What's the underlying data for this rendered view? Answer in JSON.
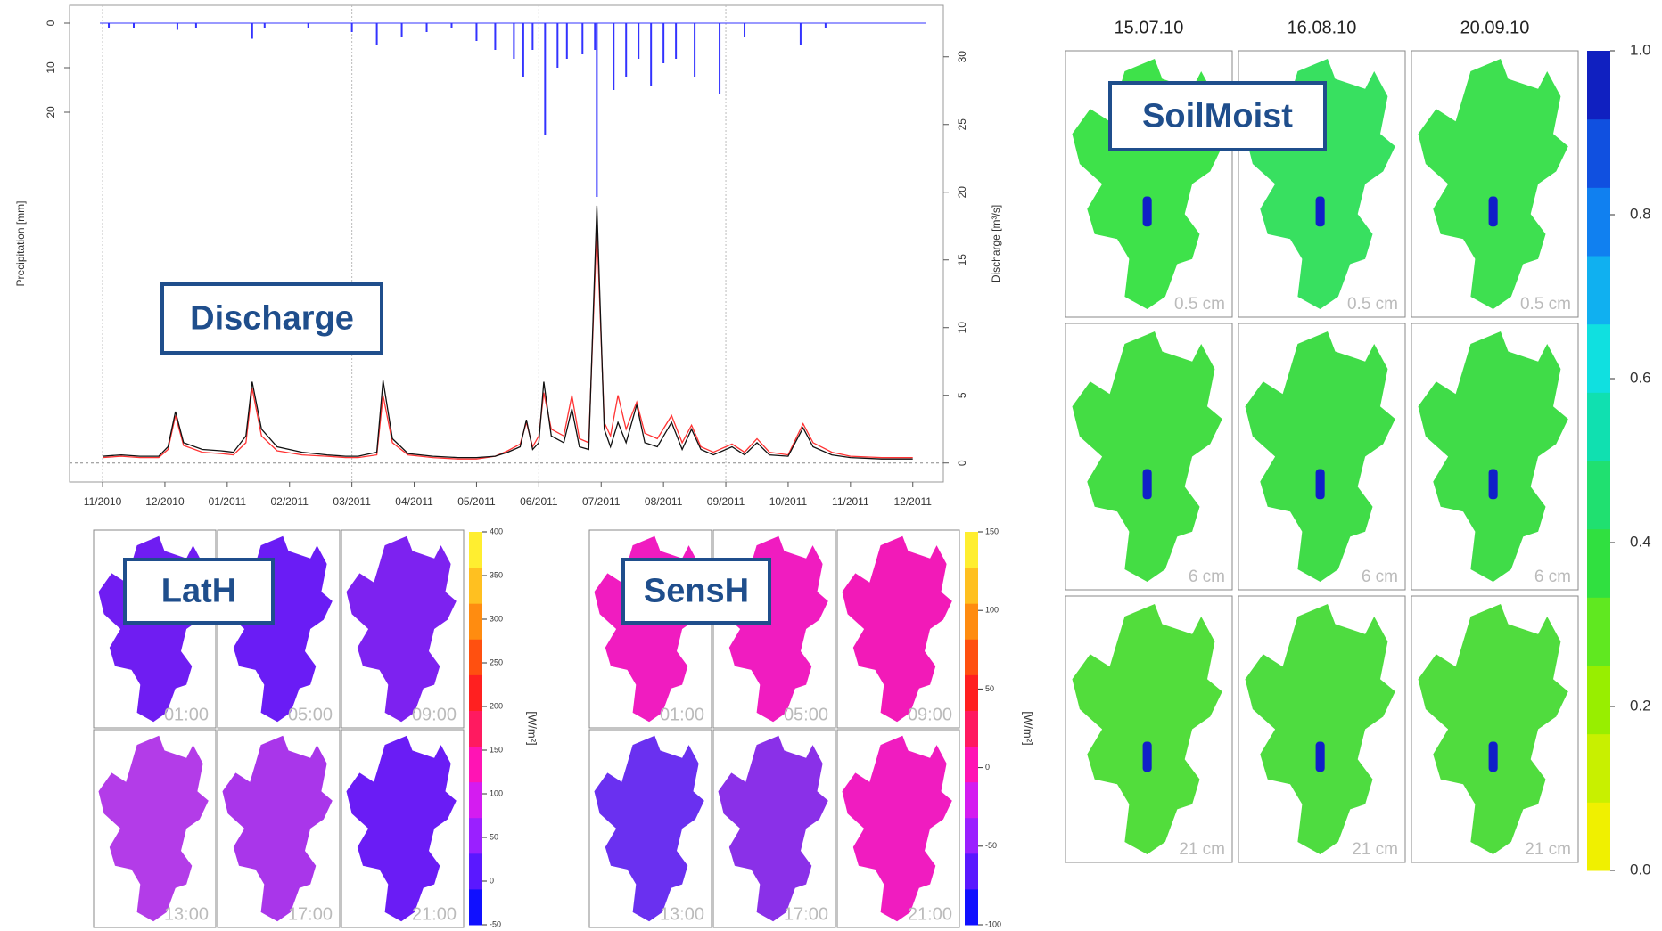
{
  "chart_data": [
    {
      "type": "line",
      "annotation": "Discharge",
      "ylabel": "Precipitation [mm]",
      "y2label": "Discharge [m³/s]",
      "xlim": [
        -0.53,
        13.49
      ],
      "xticks": [
        {
          "value": 0,
          "label": "11/2010"
        },
        {
          "value": 1,
          "label": "12/2010"
        },
        {
          "value": 2,
          "label": "01/2011"
        },
        {
          "value": 3,
          "label": "02/2011"
        },
        {
          "value": 4,
          "label": "03/2011"
        },
        {
          "value": 5,
          "label": "04/2011"
        },
        {
          "value": 6,
          "label": "05/2011"
        },
        {
          "value": 7,
          "label": "06/2011"
        },
        {
          "value": 8,
          "label": "07/2011"
        },
        {
          "value": 9,
          "label": "08/2011"
        },
        {
          "value": 10,
          "label": "09/2011"
        },
        {
          "value": 11,
          "label": "10/2011"
        },
        {
          "value": 12,
          "label": "11/2011"
        },
        {
          "value": 13,
          "label": "12/2011"
        }
      ],
      "xgrid_ticks": [
        0,
        4,
        7,
        10
      ],
      "ylim": [
        -4,
        103
      ],
      "y_inverted": true,
      "yticks": [
        0,
        10,
        20
      ],
      "y2lim": [
        -1.4,
        33.8
      ],
      "y2ticks": [
        0,
        5,
        10,
        15,
        20,
        25,
        30
      ],
      "x": [
        0,
        0.3,
        0.6,
        0.9,
        1.05,
        1.17,
        1.3,
        1.6,
        1.9,
        2.1,
        2.3,
        2.4,
        2.55,
        2.8,
        3.2,
        3.6,
        3.9,
        4.1,
        4.4,
        4.5,
        4.65,
        4.9,
        5.3,
        5.7,
        6.0,
        6.3,
        6.5,
        6.7,
        6.8,
        6.9,
        7.0,
        7.08,
        7.2,
        7.4,
        7.53,
        7.65,
        7.8,
        7.93,
        8.05,
        8.15,
        8.27,
        8.4,
        8.57,
        8.7,
        8.9,
        9.13,
        9.3,
        9.45,
        9.6,
        9.8,
        10.1,
        10.3,
        10.5,
        10.7,
        11.0,
        11.24,
        11.4,
        11.7,
        12.0,
        12.5,
        13.0
      ],
      "series": [
        {
          "kind": "bar",
          "axis": "y",
          "color": "#3333ff",
          "x": [
            0.1,
            0.5,
            1.2,
            1.5,
            2.4,
            2.6,
            3.3,
            4.0,
            4.4,
            4.8,
            5.2,
            5.6,
            6.0,
            6.3,
            6.6,
            6.75,
            6.9,
            7.1,
            7.3,
            7.45,
            7.7,
            7.9,
            7.93,
            8.2,
            8.4,
            8.6,
            8.8,
            9.0,
            9.2,
            9.5,
            9.9,
            10.3,
            11.2,
            11.6
          ],
          "values": [
            1,
            1,
            1.5,
            1,
            3.5,
            1,
            1,
            2,
            5,
            3,
            2,
            1,
            4,
            6,
            8,
            12,
            6,
            25,
            10,
            8,
            7,
            6,
            39,
            15,
            12,
            8,
            14,
            9,
            8,
            12,
            16,
            3,
            5,
            1
          ]
        },
        {
          "kind": "line",
          "axis": "y2",
          "color": "#ff3333",
          "values": [
            0.4,
            0.5,
            0.4,
            0.4,
            1.0,
            3.5,
            1.3,
            0.8,
            0.7,
            0.6,
            1.5,
            5.5,
            2.0,
            0.9,
            0.6,
            0.5,
            0.4,
            0.4,
            0.6,
            5.0,
            1.5,
            0.6,
            0.4,
            0.3,
            0.3,
            0.5,
            0.9,
            1.4,
            3.0,
            1.2,
            2.0,
            5.2,
            2.5,
            2.0,
            5.0,
            1.8,
            1.5,
            17.5,
            3.0,
            2.0,
            5.0,
            2.5,
            4.5,
            2.2,
            1.8,
            3.5,
            1.5,
            2.8,
            1.2,
            0.8,
            1.4,
            0.8,
            1.8,
            0.8,
            0.6,
            2.9,
            1.5,
            0.8,
            0.5,
            0.4,
            0.4
          ]
        },
        {
          "kind": "line",
          "axis": "y2",
          "color": "#111111",
          "values": [
            0.5,
            0.6,
            0.5,
            0.5,
            1.2,
            3.8,
            1.5,
            1.0,
            0.9,
            0.8,
            2.0,
            6.0,
            2.5,
            1.2,
            0.8,
            0.6,
            0.5,
            0.5,
            0.8,
            6.1,
            1.8,
            0.7,
            0.5,
            0.4,
            0.4,
            0.5,
            0.8,
            1.2,
            3.2,
            1.0,
            1.5,
            6.0,
            2.0,
            1.5,
            4.0,
            1.2,
            1.0,
            19.0,
            2.5,
            1.2,
            3.0,
            1.5,
            4.3,
            1.5,
            1.2,
            3.0,
            1.0,
            2.5,
            1.0,
            0.6,
            1.2,
            0.6,
            1.5,
            0.6,
            0.5,
            2.6,
            1.2,
            0.6,
            0.4,
            0.3,
            0.3
          ]
        }
      ]
    },
    {
      "type": "map",
      "annotation": "LatH",
      "colorbar_label": "[W/m²]",
      "columns": 3,
      "panels": [
        {
          "label": "01:00",
          "color": "#6f1df2"
        },
        {
          "label": "05:00",
          "color": "#6a1cf5"
        },
        {
          "label": "09:00",
          "color": "#7d22f0"
        },
        {
          "label": "13:00",
          "color": "#b33ce8"
        },
        {
          "label": "17:00",
          "color": "#a936ea"
        },
        {
          "label": "21:00",
          "color": "#6a1cf5"
        }
      ],
      "colorbar": {
        "lim": [
          -50,
          400
        ],
        "ticks": [
          -50,
          0,
          50,
          100,
          150,
          200,
          250,
          300,
          350,
          400
        ],
        "colors": [
          "#1010ff",
          "#5a18ff",
          "#9a20ff",
          "#d41cf0",
          "#ff14b4",
          "#ff1a60",
          "#ff2020",
          "#ff5010",
          "#ff8c10",
          "#ffc020",
          "#ffee30"
        ]
      }
    },
    {
      "type": "map",
      "annotation": "SensH",
      "colorbar_label": "[W/m²]",
      "columns": 3,
      "panels": [
        {
          "label": "01:00",
          "color": "#f01cc0"
        },
        {
          "label": "05:00",
          "color": "#f01cc0"
        },
        {
          "label": "09:00",
          "color": "#f21ab8"
        },
        {
          "label": "13:00",
          "color": "#6a30f0"
        },
        {
          "label": "17:00",
          "color": "#8a30e8"
        },
        {
          "label": "21:00",
          "color": "#f01cc0"
        }
      ],
      "colorbar": {
        "lim": [
          -100,
          150
        ],
        "ticks": [
          -100,
          -50,
          0,
          50,
          100,
          150
        ],
        "colors": [
          "#1010ff",
          "#5a18ff",
          "#9a20ff",
          "#d41cf0",
          "#ff14b4",
          "#ff1a60",
          "#ff2020",
          "#ff5010",
          "#ff8c10",
          "#ffc020",
          "#ffee30"
        ]
      }
    },
    {
      "type": "map",
      "annotation": "SoilMoist",
      "columns": 3,
      "column_titles": [
        "15.07.10",
        "16.08.10",
        "20.09.10"
      ],
      "panels": [
        {
          "label": "0.5 cm",
          "color": "#3ee24a"
        },
        {
          "label": "0.5 cm",
          "color": "#38e060"
        },
        {
          "label": "0.5 cm",
          "color": "#3ee050"
        },
        {
          "label": "6 cm",
          "color": "#44dd44"
        },
        {
          "label": "6 cm",
          "color": "#40dc48"
        },
        {
          "label": "6 cm",
          "color": "#40dc48"
        },
        {
          "label": "21 cm",
          "color": "#52dd3c"
        },
        {
          "label": "21 cm",
          "color": "#4edc40"
        },
        {
          "label": "21 cm",
          "color": "#50dc3e"
        }
      ],
      "colorbar": {
        "lim": [
          0,
          1
        ],
        "ticks": [
          {
            "value": 0,
            "label": "0.0"
          },
          0.2,
          0.4,
          0.6,
          0.8,
          {
            "value": 1,
            "label": "1.0"
          }
        ],
        "colors": [
          "#f0f000",
          "#c8f000",
          "#98ee00",
          "#60e820",
          "#30e040",
          "#20e070",
          "#10e0b0",
          "#10e0e0",
          "#10b0f0",
          "#1080f0",
          "#1050e0",
          "#1020c0"
        ]
      }
    }
  ]
}
